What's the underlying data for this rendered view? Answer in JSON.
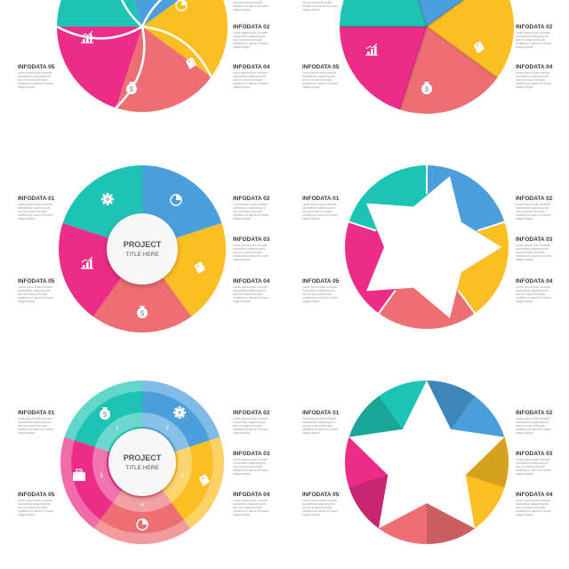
{
  "colors": {
    "teal": "#1ec4b3",
    "blue": "#4a9fdc",
    "yellow": "#fbbf24",
    "coral": "#ee6f73",
    "magenta": "#ec2c86"
  },
  "labels": {
    "infodata_01": "INFODATA 01",
    "infodata_02": "INFODATA 02",
    "infodata_03": "INFODATA 03",
    "infodata_04": "INFODATA 04",
    "infodata_05": "INFODATA 05",
    "body_lines": [
      "Lorem ipsum dolor sit amet,",
      "consectetur adipiscing elit,",
      "sed do eiusmod tempor",
      "incididunt ut labore et dolore",
      "magna aliqua."
    ]
  },
  "center": {
    "title": "PROJECT",
    "subtitle": "TITLE HERE"
  },
  "ring_numbers": [
    "1",
    "2",
    "3",
    "4",
    "5"
  ],
  "icons": {
    "gear": "gear-icon",
    "pie": "pie-chart-icon",
    "tag": "price-tag-icon",
    "money": "money-bag-icon",
    "chart": "bar-chart-icon",
    "briefcase": "briefcase-icon"
  }
}
